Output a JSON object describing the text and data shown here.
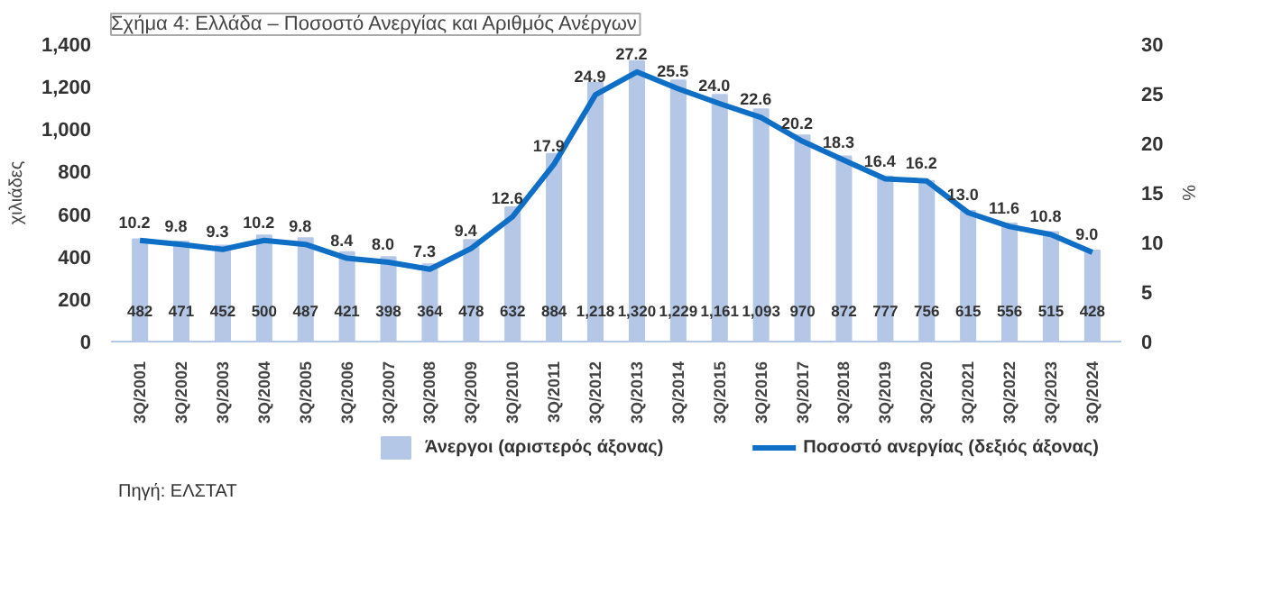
{
  "chart_data": {
    "type": "bar",
    "title": "Σχήμα 4: Ελλάδα – Ποσοστό Ανεργίας και Αριθμός Ανέργων",
    "categories": [
      "3Q/2001",
      "3Q/2002",
      "3Q/2003",
      "3Q/2004",
      "3Q/2005",
      "3Q/2006",
      "3Q/2007",
      "3Q/2008",
      "3Q/2009",
      "3Q/2010",
      "3Q/2011",
      "3Q/2012",
      "3Q/2013",
      "3Q/2014",
      "3Q/2015",
      "3Q/2016",
      "3Q/2017",
      "3Q/2018",
      "3Q/2019",
      "3Q/2020",
      "3Q/2021",
      "3Q/2022",
      "3Q/2023",
      "3Q/2024"
    ],
    "series": [
      {
        "name": "Άνεργοι (αριστερός άξονας)",
        "type": "bar",
        "color": "#b4c7e7",
        "values": [
          482,
          471,
          452,
          500,
          487,
          421,
          398,
          364,
          478,
          632,
          884,
          1218,
          1320,
          1229,
          1161,
          1093,
          970,
          872,
          777,
          756,
          615,
          556,
          515,
          428
        ],
        "value_labels": [
          "482",
          "471",
          "452",
          "500",
          "487",
          "421",
          "398",
          "364",
          "478",
          "632",
          "884",
          "1,218",
          "1,320",
          "1,229",
          "1,161",
          "1,093",
          "970",
          "872",
          "777",
          "756",
          "615",
          "556",
          "515",
          "428"
        ]
      },
      {
        "name": "Ποσοστό ανεργίας (δεξιός άξονας)",
        "type": "line",
        "axis": "y2",
        "color": "#0f6fc6",
        "values": [
          10.2,
          9.8,
          9.3,
          10.2,
          9.8,
          8.4,
          8.0,
          7.3,
          9.4,
          12.6,
          17.9,
          24.9,
          27.2,
          25.5,
          24.0,
          22.6,
          20.2,
          18.3,
          16.4,
          16.2,
          13.0,
          11.6,
          10.8,
          9.0
        ],
        "value_labels": [
          "10.2",
          "9.8",
          "9.3",
          "10.2",
          "9.8",
          "8.4",
          "8.0",
          "7.3",
          "9.4",
          "12.6",
          "17.9",
          "24.9",
          "27.2",
          "25.5",
          "24.0",
          "22.6",
          "20.2",
          "18.3",
          "16.4",
          "16.2",
          "13.0",
          "11.6",
          "10.8",
          "9.0"
        ]
      }
    ],
    "ylabel": "χιλιάδες",
    "y2label": "%",
    "ylim": [
      0,
      1400
    ],
    "yticks": [
      0,
      {
        "value": 200,
        "label": "200"
      },
      {
        "value": 400,
        "label": "400"
      },
      {
        "value": 600,
        "label": "600"
      },
      {
        "value": 800,
        "label": "800"
      },
      {
        "value": 1000,
        "label": "1,000"
      },
      {
        "value": 1200,
        "label": "1,200"
      },
      {
        "value": 1400,
        "label": "1,400"
      }
    ],
    "y2lim": [
      0,
      30
    ],
    "y2ticks": [
      0,
      5,
      10,
      15,
      20,
      25,
      30
    ],
    "grid": false,
    "legend": "bottom",
    "annotations": [
      "Πηγή: ΕΛΣΤΑΤ"
    ]
  }
}
